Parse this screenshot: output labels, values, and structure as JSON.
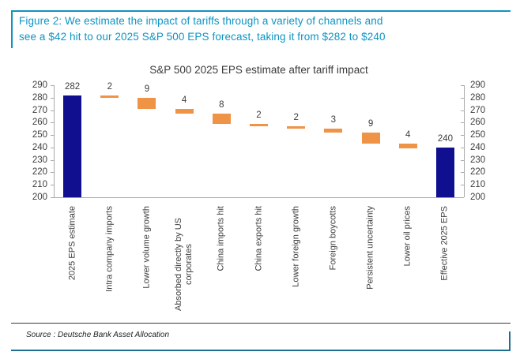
{
  "figure": {
    "title_line1": "Figure 2: We estimate the impact of tariffs through a variety of channels and",
    "title_line2": "see a $42 hit to our 2025 S&P 500 EPS forecast, taking it from $282 to $240",
    "source": "Source : Deutsche Bank Asset Allocation",
    "accent_color": "#0e94c4",
    "bottom_rule_color": "#206e8f"
  },
  "chart_data": {
    "type": "bar",
    "subtype": "waterfall",
    "title": "S&P 500 2025 EPS estimate after tariff impact",
    "ylim": [
      200,
      290
    ],
    "ytick_step": 10,
    "grid": false,
    "axis_sides": [
      "left",
      "right"
    ],
    "colors": {
      "total": "#0f0f8f",
      "decrease": "#ef9346",
      "axis": "#a9a9a9"
    },
    "steps": [
      {
        "category": "2025 EPS estimate",
        "label": "282",
        "start": 200,
        "end": 282,
        "kind": "total"
      },
      {
        "category": "Intra company imports",
        "label": "2",
        "start": 282,
        "end": 280,
        "kind": "decrease"
      },
      {
        "category": "Lower volume growth",
        "label": "9",
        "start": 280,
        "end": 271,
        "kind": "decrease"
      },
      {
        "category": "Absorbed directly by US corporates",
        "label": "4",
        "start": 271,
        "end": 267,
        "kind": "decrease"
      },
      {
        "category": "China imports hit",
        "label": "8",
        "start": 267,
        "end": 259,
        "kind": "decrease"
      },
      {
        "category": "China exports hit",
        "label": "2",
        "start": 259,
        "end": 257,
        "kind": "decrease"
      },
      {
        "category": "Lower foreign growth",
        "label": "2",
        "start": 257,
        "end": 255,
        "kind": "decrease"
      },
      {
        "category": "Foreign boycotts",
        "label": "3",
        "start": 255,
        "end": 252,
        "kind": "decrease"
      },
      {
        "category": "Persistent uncertainty",
        "label": "9",
        "start": 252,
        "end": 243,
        "kind": "decrease"
      },
      {
        "category": "Lower oil prices",
        "label": "4",
        "start": 243,
        "end": 239,
        "kind": "decrease"
      },
      {
        "category": "Effective 2025 EPS",
        "label": "240",
        "start": 200,
        "end": 240,
        "kind": "total"
      }
    ]
  }
}
